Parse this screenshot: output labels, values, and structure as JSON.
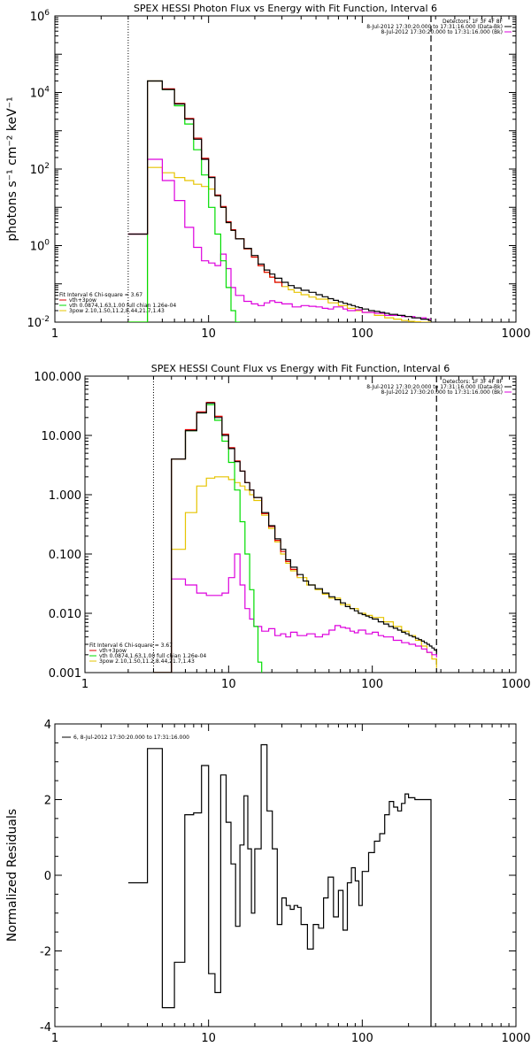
{
  "colors": {
    "data": "#000000",
    "total": "#e00000",
    "thermal": "#00dd00",
    "pow": "#e6c400",
    "bk": "#dd00dd"
  },
  "chart_data": [
    {
      "type": "line",
      "title": "SPEX HESSI Photon Flux vs Energy with Fit Function, Interval 6",
      "xlabel": "",
      "ylabel": "photons s⁻¹ cm⁻² keV⁻¹",
      "xscale": "log",
      "yscale": "log",
      "xlim": [
        1,
        1000
      ],
      "ylim": [
        0.01,
        1000000
      ],
      "xticks": [
        "1",
        "10",
        "100",
        "1000"
      ],
      "yticks": [
        {
          "m": "10",
          "e": "6",
          "v": 1000000
        },
        {
          "m": "10",
          "e": "4",
          "v": 10000
        },
        {
          "m": "10",
          "e": "2",
          "v": 100
        },
        {
          "m": "10",
          "e": "0",
          "v": 1
        },
        {
          "m": "10",
          "e": "-2",
          "v": 0.01
        }
      ],
      "info_lines": [
        "Detectors: 1F 3F 4F 8F",
        "8-Jul-2012 17:30:20.000 to 17:31:16.000 (Data-Bk)",
        "8-Jul-2012 17:30:20.000 to 17:31:16.000 (Bk)"
      ],
      "legend": [
        "Fit Interval 6   Chi-square = 3.67",
        "vth+3pow",
        "vth 0.0874,1.63,1.00  full chian 1.26e-04",
        "3pow 2.10,1.50,11.2,8.44,21.7,1.43"
      ],
      "vlines": [
        3,
        280
      ],
      "series": [
        {
          "key": "data",
          "x": [
            3,
            4,
            5,
            6,
            7,
            8,
            9,
            10,
            11,
            12,
            13,
            14,
            15,
            17,
            19,
            21,
            23,
            25,
            27,
            30,
            33,
            36,
            40,
            45,
            50,
            55,
            60,
            65,
            70,
            75,
            80,
            85,
            90,
            95,
            100,
            110,
            120,
            130,
            140,
            150,
            160,
            170,
            180,
            190,
            200,
            210,
            220,
            230,
            240,
            250,
            260,
            270,
            280
          ],
          "y": [
            2,
            20000,
            12000,
            5000,
            2000,
            600,
            180,
            60,
            20,
            10,
            4,
            2.5,
            1.5,
            0.85,
            0.55,
            0.33,
            0.23,
            0.18,
            0.14,
            0.11,
            0.09,
            0.078,
            0.068,
            0.06,
            0.052,
            0.046,
            0.041,
            0.037,
            0.034,
            0.031,
            0.029,
            0.027,
            0.025,
            0.024,
            0.022,
            0.02,
            0.019,
            0.018,
            0.017,
            0.016,
            0.016,
            0.015,
            0.015,
            0.014,
            0.014,
            0.013,
            0.013,
            0.013,
            0.012,
            0.012,
            0.012,
            0.011,
            0.011
          ]
        },
        {
          "key": "total",
          "x": [
            3,
            4,
            5,
            6,
            7,
            8,
            9,
            10,
            11,
            12,
            13,
            14,
            15,
            17,
            19,
            21,
            23,
            25,
            27,
            30
          ],
          "y": [
            2,
            20000,
            12500,
            5200,
            2100,
            640,
            190,
            62,
            21,
            10.5,
            4.2,
            2.6,
            1.5,
            0.82,
            0.5,
            0.3,
            0.2,
            0.15,
            0.11,
            0.085
          ]
        },
        {
          "key": "thermal",
          "x": [
            3,
            4,
            5,
            6,
            7,
            8,
            9,
            10,
            11,
            12,
            13,
            14,
            15,
            16
          ],
          "y": [
            0.01,
            20000,
            12000,
            4500,
            1500,
            320,
            70,
            10,
            2,
            0.4,
            0.08,
            0.02,
            0.01,
            0.01
          ]
        },
        {
          "key": "pow",
          "x": [
            3,
            4,
            5,
            6,
            7,
            8,
            9,
            10,
            11,
            12,
            13,
            14,
            15,
            17,
            19,
            21,
            23,
            25,
            27,
            30,
            33,
            36,
            40,
            45,
            50,
            60,
            70,
            80,
            90,
            100,
            120,
            140,
            160,
            180,
            200,
            220,
            240,
            260,
            280
          ],
          "y": [
            0.01,
            110,
            80,
            60,
            50,
            40,
            35,
            30,
            20,
            10,
            4,
            2.5,
            1.5,
            0.82,
            0.5,
            0.3,
            0.2,
            0.15,
            0.11,
            0.085,
            0.07,
            0.06,
            0.052,
            0.045,
            0.04,
            0.032,
            0.027,
            0.023,
            0.02,
            0.018,
            0.015,
            0.013,
            0.012,
            0.011,
            0.0105,
            0.0102,
            0.01,
            0.01,
            0.01
          ]
        },
        {
          "key": "bk",
          "x": [
            3,
            4,
            5,
            6,
            7,
            8,
            9,
            10,
            11,
            12,
            13,
            14,
            15,
            17,
            19,
            21,
            23,
            25,
            27,
            30,
            35,
            40,
            45,
            50,
            55,
            60,
            65,
            70,
            75,
            80,
            90,
            100,
            120,
            140,
            160,
            180,
            200,
            220,
            240,
            260,
            280
          ],
          "y": [
            2,
            180,
            50,
            15,
            3,
            0.9,
            0.4,
            0.35,
            0.3,
            0.6,
            0.25,
            0.08,
            0.05,
            0.035,
            0.03,
            0.027,
            0.032,
            0.036,
            0.033,
            0.03,
            0.025,
            0.027,
            0.026,
            0.025,
            0.023,
            0.022,
            0.025,
            0.025,
            0.022,
            0.02,
            0.021,
            0.018,
            0.017,
            0.015,
            0.015,
            0.014,
            0.014,
            0.013,
            0.013,
            0.012,
            0.012
          ]
        }
      ]
    },
    {
      "type": "line",
      "title": "SPEX HESSI Count Flux vs Energy with Fit Function, Interval 6",
      "xlabel": "",
      "ylabel": "",
      "xscale": "log",
      "yscale": "log",
      "xlim": [
        1,
        1000
      ],
      "ylim": [
        0.001,
        100
      ],
      "xticks": [
        "1",
        "10",
        "100",
        "1000"
      ],
      "yticks": [
        {
          "t": "100.000",
          "v": 100
        },
        {
          "t": "10.000",
          "v": 10
        },
        {
          "t": "1.000",
          "v": 1
        },
        {
          "t": "0.100",
          "v": 0.1
        },
        {
          "t": "0.010",
          "v": 0.01
        },
        {
          "t": "0.001",
          "v": 0.001
        }
      ],
      "info_lines": [
        "Detectors: 1F 3F 4F 8F",
        "8-Jul-2012 17:30:20.000 to 17:31:16.000 (Data-Bk)",
        "8-Jul-2012 17:30:20.000 to 17:31:16.000 (Bk)"
      ],
      "legend": [
        "Fit Interval 6   Chi-square = 3.67",
        "vth+3pow",
        "vth 0.0874,1.63,1.00  full chian 1.26e-04",
        "3pow 2.10,1.50,11.2,8.44,21.7,1.43"
      ],
      "vlines": [
        3,
        280
      ],
      "series": [
        {
          "key": "data",
          "x": [
            3,
            4,
            5,
            6,
            7,
            8,
            9,
            10,
            11,
            12,
            13,
            14,
            15,
            17,
            19,
            21,
            23,
            25,
            27,
            30,
            33,
            36,
            40,
            45,
            50,
            55,
            60,
            65,
            70,
            75,
            80,
            85,
            90,
            95,
            100,
            110,
            120,
            130,
            140,
            150,
            160,
            170,
            180,
            190,
            200,
            210,
            220,
            230,
            240,
            250,
            260,
            270,
            280
          ],
          "y": [
            0.001,
            4,
            12,
            24,
            35,
            20,
            10,
            6,
            3.6,
            2.5,
            1.6,
            1.2,
            0.9,
            0.5,
            0.3,
            0.18,
            0.12,
            0.08,
            0.06,
            0.045,
            0.035,
            0.03,
            0.026,
            0.022,
            0.019,
            0.017,
            0.015,
            0.013,
            0.012,
            0.011,
            0.01,
            0.0095,
            0.009,
            0.0085,
            0.008,
            0.0072,
            0.0066,
            0.006,
            0.0056,
            0.0052,
            0.0048,
            0.0045,
            0.0042,
            0.004,
            0.0038,
            0.0036,
            0.0034,
            0.0032,
            0.003,
            0.0028,
            0.0026,
            0.0024,
            0.0022
          ]
        },
        {
          "key": "total",
          "x": [
            3,
            4,
            5,
            6,
            7,
            8,
            9,
            10,
            11,
            12,
            13,
            14,
            15,
            17,
            19,
            21,
            23,
            25,
            27,
            30
          ],
          "y": [
            0.001,
            4,
            12.5,
            25,
            36,
            21,
            10.5,
            6.2,
            3.7,
            2.5,
            1.6,
            1.2,
            0.9,
            0.48,
            0.29,
            0.17,
            0.11,
            0.075,
            0.055,
            0.042
          ]
        },
        {
          "key": "thermal",
          "x": [
            3,
            4,
            5,
            6,
            7,
            8,
            9,
            10,
            11,
            12,
            13,
            14,
            15,
            16,
            17
          ],
          "y": [
            0.001,
            4,
            12,
            24,
            33,
            18,
            8,
            3.5,
            1.2,
            0.35,
            0.1,
            0.025,
            0.006,
            0.0015,
            0.001
          ]
        },
        {
          "key": "pow",
          "x": [
            3,
            4,
            5,
            6,
            7,
            8,
            9,
            10,
            11,
            12,
            13,
            14,
            15,
            17,
            19,
            21,
            23,
            25,
            27,
            30,
            35,
            40,
            45,
            50,
            60,
            70,
            80,
            90,
            100,
            120,
            140,
            160,
            180,
            200,
            220,
            240,
            260,
            280
          ],
          "y": [
            0.001,
            0.12,
            0.5,
            1.4,
            1.9,
            2.0,
            2.0,
            1.8,
            1.6,
            1.4,
            1.2,
            1.0,
            0.8,
            0.45,
            0.27,
            0.16,
            0.1,
            0.07,
            0.052,
            0.04,
            0.03,
            0.025,
            0.021,
            0.018,
            0.014,
            0.012,
            0.01,
            0.0092,
            0.0085,
            0.0072,
            0.006,
            0.005,
            0.0042,
            0.0035,
            0.0028,
            0.0022,
            0.0017,
            0.0012
          ]
        },
        {
          "key": "bk",
          "x": [
            3,
            4,
            5,
            6,
            7,
            8,
            9,
            10,
            11,
            12,
            13,
            14,
            15,
            17,
            19,
            21,
            23,
            25,
            27,
            30,
            35,
            40,
            45,
            50,
            55,
            60,
            65,
            70,
            75,
            80,
            90,
            100,
            110,
            120,
            140,
            160,
            180,
            200,
            220,
            240,
            260,
            280
          ],
          "y": [
            0.001,
            0.038,
            0.03,
            0.022,
            0.02,
            0.02,
            0.022,
            0.04,
            0.1,
            0.03,
            0.012,
            0.008,
            0.006,
            0.005,
            0.0055,
            0.0042,
            0.0045,
            0.004,
            0.0048,
            0.0042,
            0.0045,
            0.004,
            0.0044,
            0.0052,
            0.0062,
            0.0058,
            0.0056,
            0.005,
            0.0047,
            0.0052,
            0.0045,
            0.0048,
            0.0042,
            0.004,
            0.0035,
            0.0032,
            0.003,
            0.0028,
            0.0025,
            0.0022,
            0.002,
            0.0018
          ]
        }
      ]
    },
    {
      "type": "line",
      "title": "",
      "xlabel": "",
      "ylabel": "Normalized Residuals",
      "xscale": "log",
      "yscale": "linear",
      "xlim": [
        1,
        1000
      ],
      "ylim": [
        -4,
        4
      ],
      "xticks": [
        "1",
        "10",
        "100",
        "1000"
      ],
      "yticks": [
        {
          "t": "4",
          "v": 4
        },
        {
          "t": "2",
          "v": 2
        },
        {
          "t": "0",
          "v": 0
        },
        {
          "t": "-2",
          "v": -2
        },
        {
          "t": "-4",
          "v": -4
        }
      ],
      "legend": [
        "6,  8-Jul-2012 17:30:20.000 to 17:31:16.000"
      ],
      "series": [
        {
          "key": "data",
          "x": [
            3,
            4,
            5,
            6,
            7,
            8,
            9,
            10,
            11,
            12,
            13,
            14,
            15,
            16,
            17,
            18,
            19,
            20,
            22,
            24,
            26,
            28,
            30,
            32,
            34,
            36,
            38,
            40,
            44,
            48,
            52,
            56,
            60,
            65,
            70,
            75,
            80,
            85,
            90,
            95,
            100,
            110,
            120,
            130,
            140,
            150,
            160,
            170,
            180,
            190,
            200,
            220,
            240,
            260,
            280
          ],
          "y": [
            -0.2,
            3.35,
            -3.5,
            -2.3,
            1.6,
            1.65,
            2.9,
            -2.6,
            -3.1,
            2.65,
            1.4,
            0.3,
            -1.35,
            0.8,
            2.1,
            0.7,
            -1.0,
            0.7,
            3.45,
            1.7,
            0.7,
            -1.3,
            -0.6,
            -0.8,
            -0.9,
            -0.8,
            -0.85,
            -1.3,
            -1.95,
            -1.3,
            -1.4,
            -0.6,
            -0.05,
            -1.1,
            -0.4,
            -1.45,
            -0.2,
            0.2,
            -0.15,
            -0.8,
            0.1,
            0.6,
            0.9,
            1.1,
            1.6,
            1.95,
            1.8,
            1.7,
            1.9,
            2.15,
            2.05,
            2.0,
            2.0,
            2.0,
            -4
          ]
        }
      ]
    }
  ]
}
